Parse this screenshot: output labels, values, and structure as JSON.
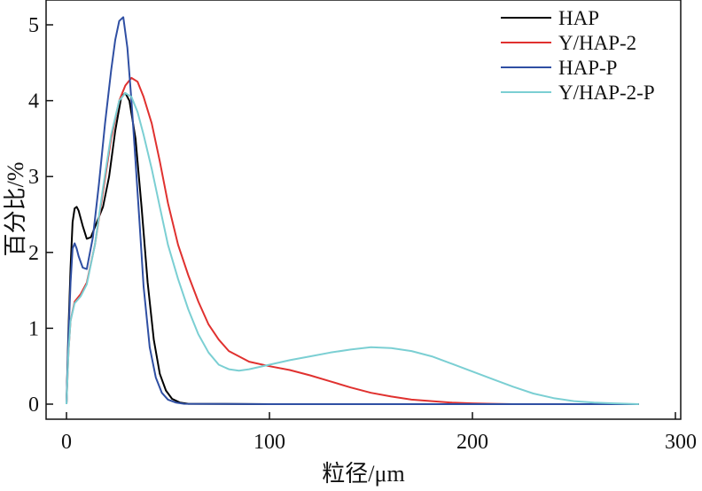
{
  "chart_data": {
    "type": "line",
    "title": "",
    "xlabel": "粒径/μm",
    "ylabel": "百分比/%",
    "xlim": [
      0,
      300
    ],
    "ylim": [
      0,
      5.2
    ],
    "x_ticks": [
      "0",
      "100",
      "200",
      "300"
    ],
    "y_ticks": [
      "0",
      "1",
      "2",
      "3",
      "4",
      "5"
    ],
    "grid": false,
    "legend_position": "top-right",
    "series": [
      {
        "name": "HAP",
        "color": "#000000",
        "points": [
          [
            0,
            0
          ],
          [
            1,
            1.0
          ],
          [
            2,
            1.8
          ],
          [
            3,
            2.4
          ],
          [
            4,
            2.58
          ],
          [
            5,
            2.6
          ],
          [
            6,
            2.55
          ],
          [
            8,
            2.35
          ],
          [
            10,
            2.18
          ],
          [
            12,
            2.2
          ],
          [
            15,
            2.4
          ],
          [
            18,
            2.6
          ],
          [
            21,
            3.0
          ],
          [
            24,
            3.6
          ],
          [
            27,
            4.05
          ],
          [
            29,
            4.1
          ],
          [
            31,
            4.0
          ],
          [
            34,
            3.5
          ],
          [
            37,
            2.6
          ],
          [
            40,
            1.6
          ],
          [
            43,
            0.85
          ],
          [
            46,
            0.4
          ],
          [
            49,
            0.18
          ],
          [
            52,
            0.07
          ],
          [
            56,
            0.02
          ],
          [
            60,
            0.005
          ],
          [
            100,
            0.0
          ],
          [
            200,
            0.0
          ],
          [
            282,
            0.0
          ]
        ]
      },
      {
        "name": "Y/HAP-2",
        "color": "#e0312f",
        "points": [
          [
            0,
            0
          ],
          [
            1,
            0.7
          ],
          [
            2,
            1.1
          ],
          [
            4,
            1.35
          ],
          [
            7,
            1.45
          ],
          [
            10,
            1.6
          ],
          [
            14,
            2.1
          ],
          [
            18,
            2.8
          ],
          [
            22,
            3.5
          ],
          [
            26,
            4.0
          ],
          [
            29,
            4.2
          ],
          [
            32,
            4.3
          ],
          [
            35,
            4.25
          ],
          [
            38,
            4.05
          ],
          [
            42,
            3.7
          ],
          [
            46,
            3.2
          ],
          [
            50,
            2.65
          ],
          [
            55,
            2.1
          ],
          [
            60,
            1.7
          ],
          [
            65,
            1.35
          ],
          [
            70,
            1.05
          ],
          [
            75,
            0.85
          ],
          [
            80,
            0.7
          ],
          [
            90,
            0.56
          ],
          [
            100,
            0.5
          ],
          [
            110,
            0.45
          ],
          [
            120,
            0.38
          ],
          [
            130,
            0.3
          ],
          [
            140,
            0.22
          ],
          [
            150,
            0.15
          ],
          [
            160,
            0.1
          ],
          [
            170,
            0.06
          ],
          [
            180,
            0.04
          ],
          [
            190,
            0.02
          ],
          [
            200,
            0.01
          ],
          [
            210,
            0.005
          ],
          [
            220,
            0.0
          ],
          [
            282,
            0.0
          ]
        ]
      },
      {
        "name": "HAP-P",
        "color": "#2f4fa3",
        "points": [
          [
            0,
            0
          ],
          [
            1,
            0.9
          ],
          [
            2,
            1.6
          ],
          [
            3,
            2.05
          ],
          [
            4,
            2.12
          ],
          [
            5,
            2.05
          ],
          [
            6,
            1.95
          ],
          [
            8,
            1.8
          ],
          [
            10,
            1.78
          ],
          [
            13,
            2.2
          ],
          [
            16,
            2.9
          ],
          [
            19,
            3.7
          ],
          [
            22,
            4.4
          ],
          [
            24,
            4.8
          ],
          [
            26,
            5.05
          ],
          [
            28,
            5.1
          ],
          [
            30,
            4.7
          ],
          [
            32,
            4.0
          ],
          [
            34,
            3.2
          ],
          [
            36,
            2.4
          ],
          [
            38,
            1.55
          ],
          [
            41,
            0.75
          ],
          [
            44,
            0.35
          ],
          [
            47,
            0.15
          ],
          [
            50,
            0.06
          ],
          [
            54,
            0.02
          ],
          [
            58,
            0.005
          ],
          [
            100,
            0.0
          ],
          [
            200,
            0.0
          ],
          [
            282,
            0.0
          ]
        ]
      },
      {
        "name": "Y/HAP-2-P",
        "color": "#7bcfd3",
        "points": [
          [
            0,
            0
          ],
          [
            1,
            0.7
          ],
          [
            2,
            1.1
          ],
          [
            4,
            1.33
          ],
          [
            7,
            1.42
          ],
          [
            10,
            1.58
          ],
          [
            14,
            2.1
          ],
          [
            18,
            2.85
          ],
          [
            22,
            3.55
          ],
          [
            26,
            4.0
          ],
          [
            29,
            4.1
          ],
          [
            32,
            4.05
          ],
          [
            35,
            3.85
          ],
          [
            38,
            3.55
          ],
          [
            42,
            3.1
          ],
          [
            46,
            2.6
          ],
          [
            50,
            2.1
          ],
          [
            55,
            1.65
          ],
          [
            60,
            1.25
          ],
          [
            65,
            0.92
          ],
          [
            70,
            0.68
          ],
          [
            75,
            0.52
          ],
          [
            80,
            0.46
          ],
          [
            85,
            0.44
          ],
          [
            90,
            0.46
          ],
          [
            100,
            0.52
          ],
          [
            110,
            0.58
          ],
          [
            120,
            0.63
          ],
          [
            130,
            0.68
          ],
          [
            140,
            0.72
          ],
          [
            150,
            0.75
          ],
          [
            160,
            0.74
          ],
          [
            170,
            0.7
          ],
          [
            180,
            0.63
          ],
          [
            190,
            0.53
          ],
          [
            200,
            0.43
          ],
          [
            210,
            0.33
          ],
          [
            220,
            0.23
          ],
          [
            230,
            0.14
          ],
          [
            240,
            0.08
          ],
          [
            250,
            0.04
          ],
          [
            260,
            0.02
          ],
          [
            270,
            0.01
          ],
          [
            282,
            0.0
          ]
        ]
      }
    ]
  }
}
